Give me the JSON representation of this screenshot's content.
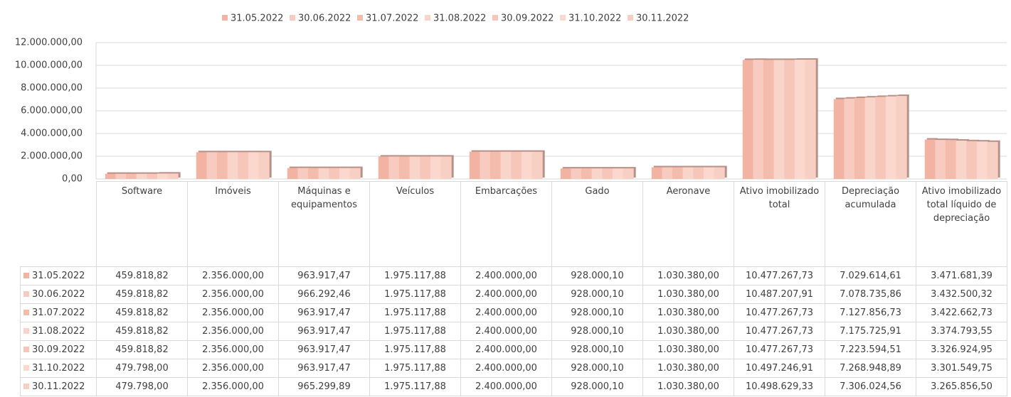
{
  "chart_data": {
    "type": "bar",
    "categories": [
      "Software",
      "Imóveis",
      "Máquinas e equipamentos",
      "Veículos",
      "Embarcações",
      "Gado",
      "Aeronave",
      "Ativo imobilizado total",
      "Depreciação acumulada",
      "Ativo imobilizado total líquido de depreciação"
    ],
    "ylim": [
      0,
      12000000
    ],
    "yticks": [
      {
        "value": 0,
        "label": "0,00"
      },
      {
        "value": 2000000,
        "label": "2.000.000,00"
      },
      {
        "value": 4000000,
        "label": "4.000.000,00"
      },
      {
        "value": 6000000,
        "label": "6.000.000,00"
      },
      {
        "value": 8000000,
        "label": "8.000.000,00"
      },
      {
        "value": 10000000,
        "label": "10.000.000,00"
      },
      {
        "value": 12000000,
        "label": "12.000.000,00"
      }
    ],
    "grid": true,
    "legend": "top",
    "series": [
      {
        "name": "31.05.2022",
        "color": "#f2b3a2",
        "values": [
          459818.82,
          2356000,
          963917.47,
          1975117.88,
          2400000,
          928000.1,
          1030380,
          10477267.73,
          7029614.61,
          3471681.39
        ],
        "value_labels": [
          "459.818,82",
          "2.356.000,00",
          "963.917,47",
          "1.975.117,88",
          "2.400.000,00",
          "928.000,10",
          "1.030.380,00",
          "10.477.267,73",
          "7.029.614,61",
          "3.471.681,39"
        ]
      },
      {
        "name": "30.06.2022",
        "color": "#f7cbbf",
        "values": [
          459818.82,
          2356000,
          966292.46,
          1975117.88,
          2400000,
          928000.1,
          1030380,
          10487207.91,
          7078735.86,
          3432500.32
        ],
        "value_labels": [
          "459.818,82",
          "2.356.000,00",
          "966.292,46",
          "1.975.117,88",
          "2.400.000,00",
          "928.000,10",
          "1.030.380,00",
          "10.487.207,91",
          "7.078.735,86",
          "3.432.500,32"
        ]
      },
      {
        "name": "31.07.2022",
        "color": "#f4bcab",
        "values": [
          459818.82,
          2356000,
          963917.47,
          1975117.88,
          2400000,
          928000.1,
          1030380,
          10477267.73,
          7127856.73,
          3422662.73
        ],
        "value_labels": [
          "459.818,82",
          "2.356.000,00",
          "963.917,47",
          "1.975.117,88",
          "2.400.000,00",
          "928.000,10",
          "1.030.380,00",
          "10.477.267,73",
          "7.127.856,73",
          "3.422.662,73"
        ]
      },
      {
        "name": "31.08.2022",
        "color": "#f9d4c9",
        "values": [
          459818.82,
          2356000,
          963917.47,
          1975117.88,
          2400000,
          928000.1,
          1030380,
          10477267.73,
          7175725.91,
          3374793.55
        ],
        "value_labels": [
          "459.818,82",
          "2.356.000,00",
          "963.917,47",
          "1.975.117,88",
          "2.400.000,00",
          "928.000,10",
          "1.030.380,00",
          "10.477.267,73",
          "7.175.725,91",
          "3.374.793,55"
        ]
      },
      {
        "name": "30.09.2022",
        "color": "#f6c6b8",
        "values": [
          459818.82,
          2356000,
          963917.47,
          1975117.88,
          2400000,
          928000.1,
          1030380,
          10477267.73,
          7223594.51,
          3326924.95
        ],
        "value_labels": [
          "459.818,82",
          "2.356.000,00",
          "963.917,47",
          "1.975.117,88",
          "2.400.000,00",
          "928.000,10",
          "1.030.380,00",
          "10.477.267,73",
          "7.223.594,51",
          "3.326.924,95"
        ]
      },
      {
        "name": "31.10.2022",
        "color": "#fad8ce",
        "values": [
          479798.0,
          2356000,
          963917.47,
          1975117.88,
          2400000,
          928000.1,
          1030380,
          10497246.91,
          7268948.89,
          3301549.75
        ],
        "value_labels": [
          "479.798,00",
          "2.356.000,00",
          "963.917,47",
          "1.975.117,88",
          "2.400.000,00",
          "928.000,10",
          "1.030.380,00",
          "10.497.246,91",
          "7.268.948,89",
          "3.301.549,75"
        ]
      },
      {
        "name": "30.11.2022",
        "color": "#f8cfc3",
        "values": [
          479798.0,
          2356000,
          965299.89,
          1975117.88,
          2400000,
          928000.1,
          1030380,
          10498629.33,
          7306024.56,
          3265856.5
        ],
        "value_labels": [
          "479.798,00",
          "2.356.000,00",
          "965.299,89",
          "1.975.117,88",
          "2.400.000,00",
          "928.000,10",
          "1.030.380,00",
          "10.498.629,33",
          "7.306.024,56",
          "3.265.856,50"
        ]
      }
    ]
  }
}
